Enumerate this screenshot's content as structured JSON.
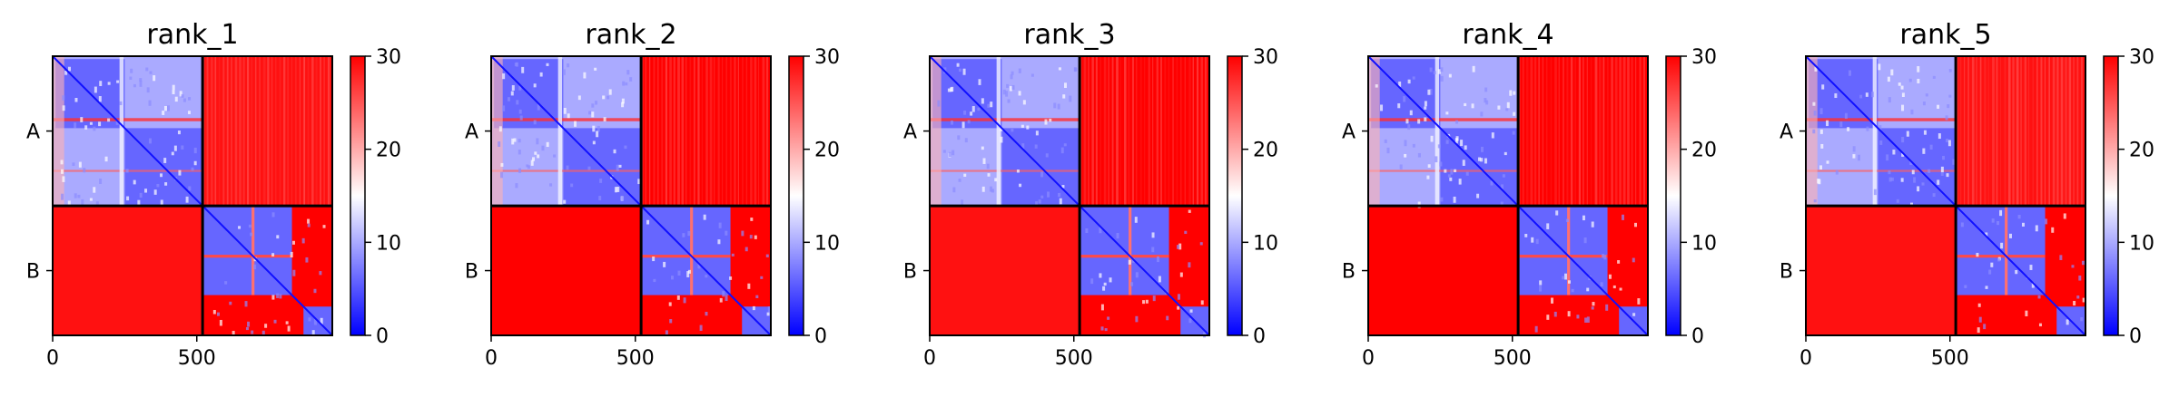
{
  "chart_data": [
    {
      "type": "heatmap",
      "title": "rank_1",
      "x_ticks": [
        0,
        500
      ],
      "x_tick_labels": [
        "0",
        "500"
      ],
      "x_range": [
        0,
        970
      ],
      "y_tick_labels": [
        "A",
        "B"
      ],
      "chain_split": 520,
      "colorbar": {
        "min": 0,
        "max": 30,
        "ticks": [
          "0",
          "10",
          "20",
          "30"
        ],
        "colormap": "bwr"
      },
      "block_values": {
        "A-A": 6,
        "A-B": 29,
        "B-A": 29,
        "B-B": 6,
        "background": 30
      }
    },
    {
      "type": "heatmap",
      "title": "rank_2",
      "x_ticks": [
        0,
        500
      ],
      "x_tick_labels": [
        "0",
        "500"
      ],
      "x_range": [
        0,
        970
      ],
      "y_tick_labels": [
        "A",
        "B"
      ],
      "chain_split": 520,
      "colorbar": {
        "min": 0,
        "max": 30,
        "ticks": [
          "0",
          "10",
          "20",
          "30"
        ],
        "colormap": "bwr"
      },
      "block_values": {
        "A-A": 6,
        "A-B": 30,
        "B-A": 30,
        "B-B": 6,
        "background": 30
      }
    },
    {
      "type": "heatmap",
      "title": "rank_3",
      "x_ticks": [
        0,
        500
      ],
      "x_tick_labels": [
        "0",
        "500"
      ],
      "x_range": [
        0,
        970
      ],
      "y_tick_labels": [
        "A",
        "B"
      ],
      "chain_split": 520,
      "colorbar": {
        "min": 0,
        "max": 30,
        "ticks": [
          "0",
          "10",
          "20",
          "30"
        ],
        "colormap": "bwr"
      },
      "block_values": {
        "A-A": 6,
        "A-B": 30,
        "B-A": 29,
        "B-B": 6,
        "background": 30
      }
    },
    {
      "type": "heatmap",
      "title": "rank_4",
      "x_ticks": [
        0,
        500
      ],
      "x_tick_labels": [
        "0",
        "500"
      ],
      "x_range": [
        0,
        970
      ],
      "y_tick_labels": [
        "A",
        "B"
      ],
      "chain_split": 520,
      "colorbar": {
        "min": 0,
        "max": 30,
        "ticks": [
          "0",
          "10",
          "20",
          "30"
        ],
        "colormap": "bwr"
      },
      "block_values": {
        "A-A": 6,
        "A-B": 30,
        "B-A": 30,
        "B-B": 6,
        "background": 30
      }
    },
    {
      "type": "heatmap",
      "title": "rank_5",
      "x_ticks": [
        0,
        500
      ],
      "x_tick_labels": [
        "0",
        "500"
      ],
      "x_range": [
        0,
        970
      ],
      "y_tick_labels": [
        "A",
        "B"
      ],
      "chain_split": 520,
      "colorbar": {
        "min": 0,
        "max": 30,
        "ticks": [
          "0",
          "10",
          "20",
          "30"
        ],
        "colormap": "bwr"
      },
      "block_values": {
        "A-A": 6,
        "A-B": 29,
        "B-A": 29,
        "B-B": 6,
        "background": 30
      }
    }
  ]
}
